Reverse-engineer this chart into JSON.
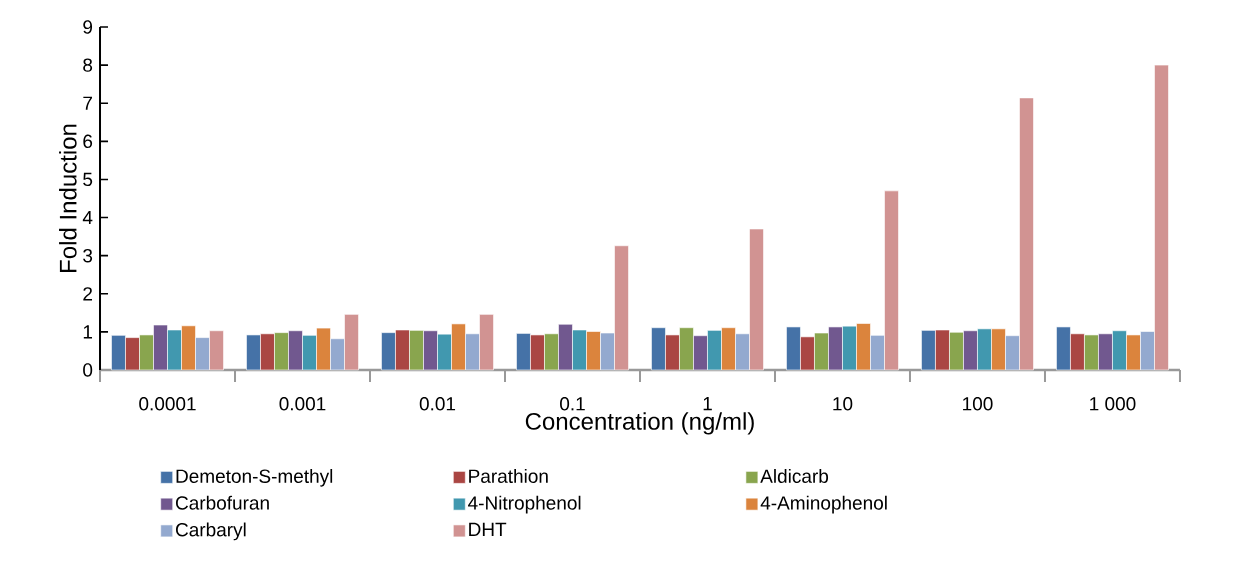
{
  "chart_data": {
    "type": "bar",
    "xlabel": "Concentration (ng/ml)",
    "ylabel": "Fold Induction",
    "categories": [
      "0.0001",
      "0.001",
      "0.01",
      "0.1",
      "1",
      "10",
      "100",
      "1 000"
    ],
    "ylim": [
      0,
      9
    ],
    "yticks": [
      0,
      1,
      2,
      3,
      4,
      5,
      6,
      7,
      8,
      9
    ],
    "grid": false,
    "legend": "bottom",
    "series": [
      {
        "name": "Demeton-S-methyl",
        "color": "#4572a7",
        "values": [
          0.91,
          0.92,
          0.98,
          0.96,
          1.11,
          1.13,
          1.04,
          1.13
        ]
      },
      {
        "name": "Parathion",
        "color": "#aa4643",
        "values": [
          0.85,
          0.95,
          1.05,
          0.92,
          0.92,
          0.87,
          1.05,
          0.95
        ]
      },
      {
        "name": "Aldicarb",
        "color": "#89a54e",
        "values": [
          0.92,
          0.98,
          1.04,
          0.95,
          1.11,
          0.97,
          0.99,
          0.92
        ]
      },
      {
        "name": "Carbofuran",
        "color": "#71588f",
        "values": [
          1.18,
          1.03,
          1.03,
          1.2,
          0.9,
          1.13,
          1.03,
          0.95
        ]
      },
      {
        "name": "4-Nitrophenol",
        "color": "#4198af",
        "values": [
          1.05,
          0.91,
          0.94,
          1.05,
          1.04,
          1.15,
          1.08,
          1.03
        ]
      },
      {
        "name": "4-Aminophenol",
        "color": "#db843d",
        "values": [
          1.16,
          1.1,
          1.21,
          1.01,
          1.11,
          1.22,
          1.08,
          0.92
        ]
      },
      {
        "name": "Carbaryl",
        "color": "#93a9cf",
        "values": [
          0.85,
          0.82,
          0.95,
          0.97,
          0.95,
          0.91,
          0.9,
          1.01
        ]
      },
      {
        "name": "DHT",
        "color": "#d19392",
        "values": [
          1.03,
          1.46,
          1.46,
          3.26,
          3.7,
          4.7,
          7.14,
          8.0
        ]
      }
    ]
  }
}
